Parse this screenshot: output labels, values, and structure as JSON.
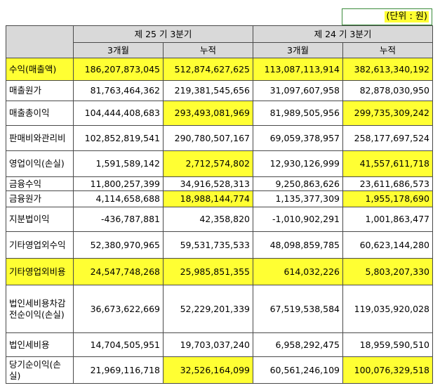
{
  "unit_label": "(단위 : 원)",
  "header": {
    "period_current": "제 25 기 3분기",
    "period_previous": "제 24 기 3분기",
    "col_3m": "3개월",
    "col_cum": "누적"
  },
  "highlight_color": "#ffff33",
  "rows": [
    {
      "label": "수익(매출액)",
      "cur3": "186,207,873,045",
      "curCum": "512,874,627,625",
      "prev3": "113,087,113,914",
      "prevCum": "382,613,340,192"
    },
    {
      "label": "매출원가",
      "cur3": "81,763,464,362",
      "curCum": "219,381,545,656",
      "prev3": "31,097,607,958",
      "prevCum": "82,878,030,950"
    },
    {
      "label": "매출총이익",
      "cur3": "104,444,408,683",
      "curCum": "293,493,081,969",
      "prev3": "81,989,505,956",
      "prevCum": "299,735,309,242"
    },
    {
      "label": "판매비와관리비",
      "cur3": "102,852,819,541",
      "curCum": "290,780,507,167",
      "prev3": "69,059,378,957",
      "prevCum": "258,177,697,524"
    },
    {
      "label": "영업이익(손실)",
      "cur3": "1,591,589,142",
      "curCum": "2,712,574,802",
      "prev3": "12,930,126,999",
      "prevCum": "41,557,611,718"
    },
    {
      "label": "금융수익",
      "cur3": "11,800,257,399",
      "curCum": "34,916,528,313",
      "prev3": "9,250,863,626",
      "prevCum": "23,611,686,573"
    },
    {
      "label": "금융원가",
      "cur3": "4,114,658,688",
      "curCum": "18,988,144,774",
      "prev3": "1,135,377,309",
      "prevCum": "1,955,178,690"
    },
    {
      "label": "지분법이익",
      "cur3": "-436,787,881",
      "curCum": "42,358,820",
      "prev3": "-1,010,902,291",
      "prevCum": "1,001,863,477"
    },
    {
      "label": "기타영업외수익",
      "cur3": "52,380,970,965",
      "curCum": "59,531,735,533",
      "prev3": "48,098,859,785",
      "prevCum": "60,623,144,280"
    },
    {
      "label": "기타영업외비용",
      "cur3": "24,547,748,268",
      "curCum": "25,985,851,355",
      "prev3": "614,032,226",
      "prevCum": "5,803,207,330"
    },
    {
      "label": "법인세비용차감전순이익(손실)",
      "cur3": "36,673,622,669",
      "curCum": "52,229,201,339",
      "prev3": "67,519,538,584",
      "prevCum": "119,035,920,028"
    },
    {
      "label": "법인세비용",
      "cur3": "14,704,505,951",
      "curCum": "19,703,037,240",
      "prev3": "6,958,292,475",
      "prevCum": "18,959,590,510"
    },
    {
      "label": "당기순이익(손실)",
      "cur3": "21,969,116,718",
      "curCum": "32,526,164,099",
      "prev3": "60,561,246,109",
      "prevCum": "100,076,329,518"
    }
  ]
}
